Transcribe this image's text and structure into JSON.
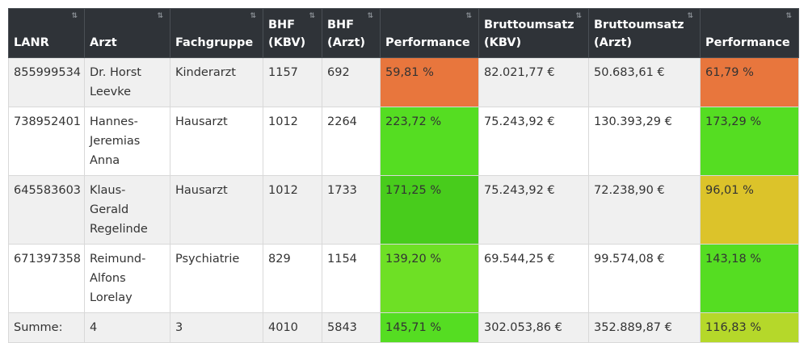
{
  "table": {
    "headers": [
      {
        "line1": "",
        "line2": "LANR"
      },
      {
        "line1": "",
        "line2": "Arzt"
      },
      {
        "line1": "",
        "line2": "Fachgruppe"
      },
      {
        "line1": "BHF",
        "line2": "(KBV)"
      },
      {
        "line1": "BHF",
        "line2": "(Arzt)"
      },
      {
        "line1": "",
        "line2": "Performance"
      },
      {
        "line1": "Bruttoumsatz",
        "line2": "(KBV)"
      },
      {
        "line1": "Bruttoumsatz",
        "line2": "(Arzt)"
      },
      {
        "line1": "",
        "line2": "Performance"
      }
    ],
    "rows": [
      {
        "lanr": "855999534",
        "arzt": "Dr. Horst Leevke",
        "fachgruppe": "Kinderarzt",
        "bhf_kbv": "1157",
        "bhf_arzt": "692",
        "perf1": "59,81 %",
        "perf1_color": "#e8763d",
        "umsatz_kbv": "82.021,77 €",
        "umsatz_arzt": "50.683,61 €",
        "perf2": "61,79 %",
        "perf2_color": "#e8763d"
      },
      {
        "lanr": "738952401",
        "arzt": "Hannes-Jeremias Anna",
        "fachgruppe": "Hausarzt",
        "bhf_kbv": "1012",
        "bhf_arzt": "2264",
        "perf1": "223,72 %",
        "perf1_color": "#55dd22",
        "umsatz_kbv": "75.243,92 €",
        "umsatz_arzt": "130.393,29 €",
        "perf2": "173,29 %",
        "perf2_color": "#55dd22"
      },
      {
        "lanr": "645583603",
        "arzt": "Klaus-Gerald Regelinde",
        "fachgruppe": "Hausarzt",
        "bhf_kbv": "1012",
        "bhf_arzt": "1733",
        "perf1": "171,25 %",
        "perf1_color": "#48cc1c",
        "umsatz_kbv": "75.243,92 €",
        "umsatz_arzt": "72.238,90 €",
        "perf2": "96,01 %",
        "perf2_color": "#dcc32a"
      },
      {
        "lanr": "671397358",
        "arzt": "Reimund-Alfons Lorelay",
        "fachgruppe": "Psychiatrie",
        "bhf_kbv": "829",
        "bhf_arzt": "1154",
        "perf1": "139,20 %",
        "perf1_color": "#6ee025",
        "umsatz_kbv": "69.544,25 €",
        "umsatz_arzt": "99.574,08 €",
        "perf2": "143,18 %",
        "perf2_color": "#55dd22"
      },
      {
        "lanr": "Summe:",
        "arzt": "4",
        "fachgruppe": "3",
        "bhf_kbv": "4010",
        "bhf_arzt": "5843",
        "perf1": "145,71 %",
        "perf1_color": "#55dd22",
        "umsatz_kbv": "302.053,86 €",
        "umsatz_arzt": "352.889,87 €",
        "perf2": "116,83 %",
        "perf2_color": "#b5d82a"
      }
    ]
  },
  "colors": {
    "header_bg": "#2f3338",
    "row_odd": "#f0f0f0",
    "row_even": "#ffffff"
  },
  "icons": {
    "sort": "sort-icon"
  }
}
